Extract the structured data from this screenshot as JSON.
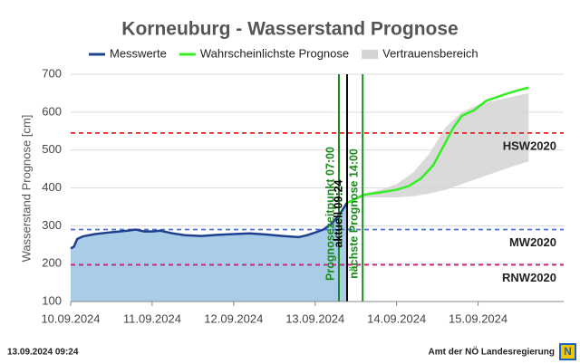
{
  "chart_data": {
    "type": "line",
    "title": "Korneuburg - Wasserstand Prognose",
    "y_label": "Wasserstand Prognose [cm]",
    "xlim": [
      0,
      6.05
    ],
    "ylim": [
      100,
      700
    ],
    "yticks": [
      100,
      200,
      300,
      400,
      500,
      600,
      700
    ],
    "xticks": [
      {
        "value": 0,
        "label": "10.09.2024"
      },
      {
        "value": 1,
        "label": "11.09.2024"
      },
      {
        "value": 2,
        "label": "12.09.2024"
      },
      {
        "value": 3,
        "label": "13.09.2024"
      },
      {
        "value": 4,
        "label": "14.09.2024"
      },
      {
        "value": 5,
        "label": "15.09.2024"
      }
    ],
    "grid": true,
    "series": [
      {
        "name": "Messwerte",
        "color": "#1f3f8f",
        "fill": "#a9cde6",
        "x": [
          0,
          0.04,
          0.08,
          0.15,
          0.3,
          0.5,
          0.7,
          0.8,
          0.9,
          1.0,
          1.1,
          1.25,
          1.4,
          1.6,
          1.8,
          2.0,
          2.2,
          2.4,
          2.6,
          2.8,
          2.9,
          3.0,
          3.1,
          3.2,
          3.3,
          3.39
        ],
        "values": [
          240,
          245,
          265,
          272,
          278,
          283,
          287,
          290,
          285,
          285,
          287,
          280,
          275,
          273,
          276,
          278,
          280,
          277,
          273,
          270,
          275,
          282,
          290,
          305,
          330,
          360
        ]
      },
      {
        "name": "Wahrscheinlichste Prognose",
        "color": "#33ee22",
        "x": [
          3.39,
          3.5,
          3.6,
          3.8,
          4.0,
          4.15,
          4.3,
          4.45,
          4.55,
          4.7,
          4.8,
          4.95,
          5.1,
          5.3,
          5.45,
          5.62
        ],
        "values": [
          360,
          372,
          382,
          388,
          395,
          405,
          425,
          460,
          500,
          560,
          590,
          605,
          630,
          645,
          655,
          665
        ]
      }
    ],
    "band": {
      "name": "Vertrauensbereich",
      "color": "#d3d3d3",
      "x": [
        3.39,
        3.6,
        3.8,
        4.0,
        4.2,
        4.4,
        4.6,
        4.8,
        5.0,
        5.2,
        5.4,
        5.62
      ],
      "upper": [
        360,
        385,
        395,
        410,
        440,
        490,
        560,
        600,
        620,
        630,
        640,
        650
      ],
      "lower": [
        360,
        375,
        375,
        375,
        378,
        385,
        395,
        410,
        425,
        440,
        455,
        470
      ]
    },
    "ref_lines": [
      {
        "label": "HSW2020",
        "value": 545,
        "color": "#e62222"
      },
      {
        "label": "MW2020",
        "value": 290,
        "color": "#4a6fd8"
      },
      {
        "label": "RNW2020",
        "value": 197,
        "color": "#c8207a"
      }
    ],
    "markers": [
      {
        "label": "Prognosezeitpunkt 07:00",
        "x": 3.2917,
        "color": "#1c8a1c"
      },
      {
        "label": "aktuell 09:24",
        "x": 3.3917,
        "color": "#000000"
      },
      {
        "label": "nächste Prognose 14:00",
        "x": 3.5833,
        "color": "#1c8a1c"
      }
    ],
    "timestamp": "13.09.2024 09:24",
    "source": "Amt der NÖ Landesregierung"
  }
}
